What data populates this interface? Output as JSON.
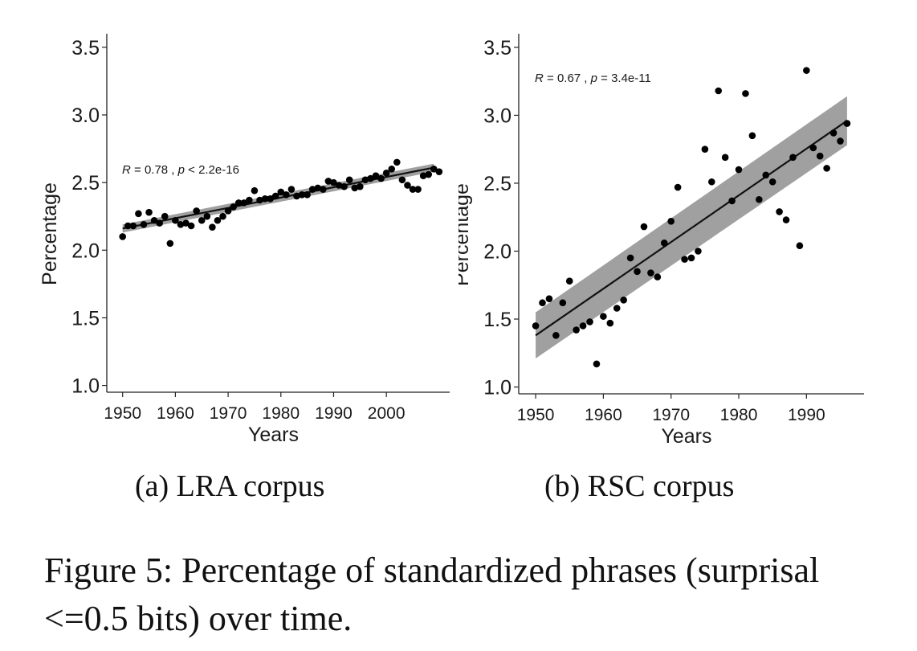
{
  "chart_data": [
    {
      "type": "scatter",
      "title": "",
      "xlabel": "Years",
      "ylabel": "Percentage",
      "xlim": [
        1947,
        2012
      ],
      "ylim": [
        0.95,
        3.6
      ],
      "x_ticks": [
        1950,
        1960,
        1970,
        1980,
        1990,
        2000
      ],
      "y_ticks": [
        1.0,
        1.5,
        2.0,
        2.5,
        3.0,
        3.5
      ],
      "y_tick_labels": [
        "1.0",
        "1.5",
        "2.0",
        "2.5",
        "3.0",
        "3.5"
      ],
      "grid": false,
      "annotation": {
        "r_label": "R",
        "r_text": " = 0.78 , ",
        "p_label": "p",
        "p_text": " < 2.2e-16"
      },
      "trend": {
        "x": [
          1950,
          2009
        ],
        "y": [
          2.16,
          2.61
        ],
        "band": [
          0.03,
          0.03
        ]
      },
      "points": {
        "x": [
          1950,
          1951,
          1952,
          1953,
          1954,
          1955,
          1956,
          1957,
          1958,
          1959,
          1960,
          1961,
          1962,
          1963,
          1964,
          1965,
          1966,
          1967,
          1968,
          1969,
          1970,
          1971,
          1972,
          1973,
          1974,
          1975,
          1976,
          1977,
          1978,
          1979,
          1980,
          1981,
          1982,
          1983,
          1984,
          1985,
          1986,
          1987,
          1988,
          1989,
          1990,
          1991,
          1992,
          1993,
          1994,
          1995,
          1996,
          1997,
          1998,
          1999,
          2000,
          2001,
          2002,
          2003,
          2004,
          2005,
          2006,
          2007,
          2008,
          2009,
          2010
        ],
        "y": [
          2.1,
          2.18,
          2.18,
          2.27,
          2.19,
          2.28,
          2.22,
          2.2,
          2.25,
          2.05,
          2.22,
          2.19,
          2.2,
          2.18,
          2.29,
          2.22,
          2.25,
          2.17,
          2.22,
          2.25,
          2.29,
          2.32,
          2.35,
          2.35,
          2.37,
          2.44,
          2.37,
          2.38,
          2.38,
          2.4,
          2.43,
          2.41,
          2.45,
          2.4,
          2.41,
          2.41,
          2.45,
          2.46,
          2.45,
          2.51,
          2.5,
          2.48,
          2.47,
          2.52,
          2.46,
          2.47,
          2.52,
          2.53,
          2.55,
          2.53,
          2.57,
          2.6,
          2.65,
          2.52,
          2.48,
          2.45,
          2.45,
          2.55,
          2.56,
          2.6,
          2.58
        ]
      }
    },
    {
      "type": "scatter",
      "title": "",
      "xlabel": "Years",
      "ylabel": "Percentage",
      "xlim": [
        1947.5,
        1998.5
      ],
      "ylim": [
        0.95,
        3.6
      ],
      "x_ticks": [
        1950,
        1960,
        1970,
        1980,
        1990
      ],
      "y_ticks": [
        1.0,
        1.5,
        2.0,
        2.5,
        3.0,
        3.5
      ],
      "y_tick_labels": [
        "1.0",
        "1.5",
        "2.0",
        "2.5",
        "3.0",
        "3.5"
      ],
      "grid": false,
      "annotation": {
        "r_label": "R",
        "r_text": " = 0.67 , ",
        "p_label": "p",
        "p_text": " = 3.4e-11"
      },
      "trend": {
        "x": [
          1950,
          1996
        ],
        "y": [
          1.38,
          2.96
        ],
        "band": [
          0.17,
          0.18
        ]
      },
      "points": {
        "x": [
          1950,
          1951,
          1952,
          1953,
          1954,
          1955,
          1956,
          1957,
          1958,
          1959,
          1960,
          1961,
          1962,
          1963,
          1964,
          1965,
          1966,
          1967,
          1968,
          1969,
          1970,
          1971,
          1972,
          1973,
          1974,
          1975,
          1976,
          1977,
          1978,
          1979,
          1980,
          1981,
          1982,
          1983,
          1984,
          1985,
          1986,
          1987,
          1988,
          1989,
          1990,
          1991,
          1992,
          1993,
          1994,
          1995,
          1996
        ],
        "y": [
          1.45,
          1.62,
          1.65,
          1.38,
          1.62,
          1.78,
          1.42,
          1.45,
          1.48,
          1.17,
          1.52,
          1.47,
          1.58,
          1.64,
          1.95,
          1.85,
          2.18,
          1.84,
          1.81,
          2.06,
          2.22,
          2.47,
          1.94,
          1.95,
          2.0,
          2.75,
          2.51,
          3.18,
          2.69,
          2.37,
          2.6,
          3.16,
          2.85,
          2.38,
          2.56,
          2.51,
          2.29,
          2.23,
          2.69,
          2.04,
          3.33,
          2.76,
          2.7,
          2.61,
          2.87,
          2.81,
          2.94
        ]
      }
    }
  ],
  "subcaptions": {
    "a": "(a) LRA corpus",
    "b": "(b) RSC corpus"
  },
  "caption": "Figure 5: Percentage of standardized phrases (surprisal <=0.5 bits) over time."
}
